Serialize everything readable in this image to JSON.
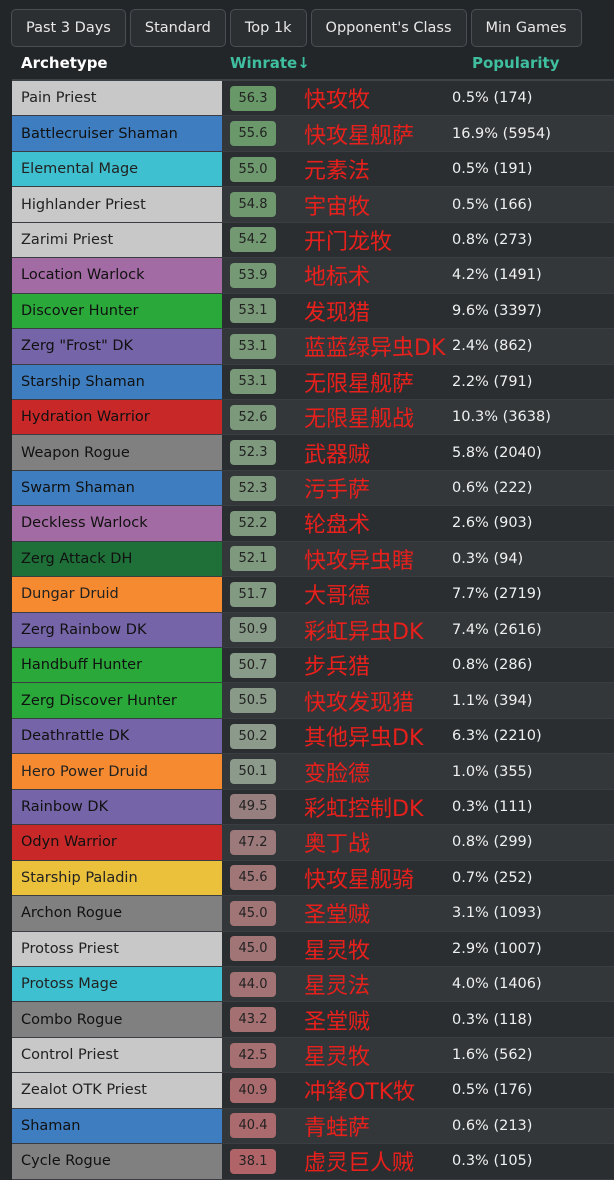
{
  "filters": [
    "Past 3 Days",
    "Standard",
    "Top 1k",
    "Opponent's Class",
    "Min Games"
  ],
  "headers": {
    "archetype": "Archetype",
    "winrate": "Winrate↓",
    "popularity": "Popularity"
  },
  "class_colors": {
    "priest": "#c8c8c8",
    "shaman": "#3e7ec0",
    "mage": "#3ec0d0",
    "warlock": "#a36ba3",
    "hunter": "#2aa83a",
    "dk": "#7565a8",
    "warrior": "#c82828",
    "rogue": "#808080",
    "dh": "#1f7038",
    "druid": "#f58a30",
    "paladin": "#ebc13c"
  },
  "rows": [
    {
      "name": "Pain Priest",
      "cls": "priest",
      "wr": "56.3",
      "cn": "快攻牧",
      "pop": "0.5% (174)"
    },
    {
      "name": "Battlecruiser Shaman",
      "cls": "shaman",
      "wr": "55.6",
      "cn": "快攻星舰萨",
      "pop": "16.9% (5954)"
    },
    {
      "name": "Elemental Mage",
      "cls": "mage",
      "wr": "55.0",
      "cn": "元素法",
      "pop": "0.5% (191)"
    },
    {
      "name": "Highlander Priest",
      "cls": "priest",
      "wr": "54.8",
      "cn": "宇宙牧",
      "pop": "0.5% (166)"
    },
    {
      "name": "Zarimi Priest",
      "cls": "priest",
      "wr": "54.2",
      "cn": "开门龙牧",
      "pop": "0.8% (273)"
    },
    {
      "name": "Location Warlock",
      "cls": "warlock",
      "wr": "53.9",
      "cn": "地标术",
      "pop": "4.2% (1491)"
    },
    {
      "name": "Discover Hunter",
      "cls": "hunter",
      "wr": "53.1",
      "cn": "发现猎",
      "pop": "9.6% (3397)"
    },
    {
      "name": "Zerg \"Frost\" DK",
      "cls": "dk",
      "wr": "53.1",
      "cn": "蓝蓝绿异虫DK",
      "pop": "2.4% (862)"
    },
    {
      "name": "Starship Shaman",
      "cls": "shaman",
      "wr": "53.1",
      "cn": "无限星舰萨",
      "pop": "2.2% (791)"
    },
    {
      "name": "Hydration Warrior",
      "cls": "warrior",
      "wr": "52.6",
      "cn": "无限星舰战",
      "pop": "10.3% (3638)"
    },
    {
      "name": "Weapon Rogue",
      "cls": "rogue",
      "wr": "52.3",
      "cn": "武器贼",
      "pop": "5.8% (2040)"
    },
    {
      "name": "Swarm Shaman",
      "cls": "shaman",
      "wr": "52.3",
      "cn": "污手萨",
      "pop": "0.6% (222)"
    },
    {
      "name": "Deckless Warlock",
      "cls": "warlock",
      "wr": "52.2",
      "cn": "轮盘术",
      "pop": "2.6% (903)"
    },
    {
      "name": "Zerg Attack DH",
      "cls": "dh",
      "wr": "52.1",
      "cn": "快攻异虫瞎",
      "pop": "0.3% (94)"
    },
    {
      "name": "Dungar Druid",
      "cls": "druid",
      "wr": "51.7",
      "cn": "大哥德",
      "pop": "7.7% (2719)"
    },
    {
      "name": "Zerg Rainbow DK",
      "cls": "dk",
      "wr": "50.9",
      "cn": "彩虹异虫DK",
      "pop": "7.4% (2616)"
    },
    {
      "name": "Handbuff Hunter",
      "cls": "hunter",
      "wr": "50.7",
      "cn": "步兵猎",
      "pop": "0.8% (286)"
    },
    {
      "name": "Zerg Discover Hunter",
      "cls": "hunter",
      "wr": "50.5",
      "cn": "快攻发现猎",
      "pop": "1.1% (394)"
    },
    {
      "name": "Deathrattle DK",
      "cls": "dk",
      "wr": "50.2",
      "cn": "其他异虫DK",
      "pop": "6.3% (2210)"
    },
    {
      "name": "Hero Power Druid",
      "cls": "druid",
      "wr": "50.1",
      "cn": "变脸德",
      "pop": "1.0% (355)"
    },
    {
      "name": "Rainbow DK",
      "cls": "dk",
      "wr": "49.5",
      "cn": "彩虹控制DK",
      "pop": "0.3% (111)"
    },
    {
      "name": "Odyn Warrior",
      "cls": "warrior",
      "wr": "47.2",
      "cn": "奥丁战",
      "pop": "0.8% (299)"
    },
    {
      "name": "Starship Paladin",
      "cls": "paladin",
      "wr": "45.6",
      "cn": "快攻星舰骑",
      "pop": "0.7% (252)"
    },
    {
      "name": "Archon Rogue",
      "cls": "rogue",
      "wr": "45.0",
      "cn": "圣堂贼",
      "pop": "3.1% (1093)"
    },
    {
      "name": "Protoss Priest",
      "cls": "priest",
      "wr": "45.0",
      "cn": "星灵牧",
      "pop": "2.9% (1007)"
    },
    {
      "name": "Protoss Mage",
      "cls": "mage",
      "wr": "44.0",
      "cn": "星灵法",
      "pop": "4.0% (1406)"
    },
    {
      "name": "Combo Rogue",
      "cls": "rogue",
      "wr": "43.2",
      "cn": "圣堂贼",
      "pop": "0.3% (118)"
    },
    {
      "name": "Control Priest",
      "cls": "priest",
      "wr": "42.5",
      "cn": "星灵牧",
      "pop": "1.6% (562)"
    },
    {
      "name": "Zealot OTK Priest",
      "cls": "priest",
      "wr": "40.9",
      "cn": "冲锋OTK牧",
      "pop": "0.5% (176)"
    },
    {
      "name": "Shaman",
      "cls": "shaman",
      "wr": "40.4",
      "cn": "青蛙萨",
      "pop": "0.6% (213)"
    },
    {
      "name": "Cycle Rogue",
      "cls": "rogue",
      "wr": "38.1",
      "cn": "虚灵巨人贼",
      "pop": "0.3% (105)"
    }
  ]
}
